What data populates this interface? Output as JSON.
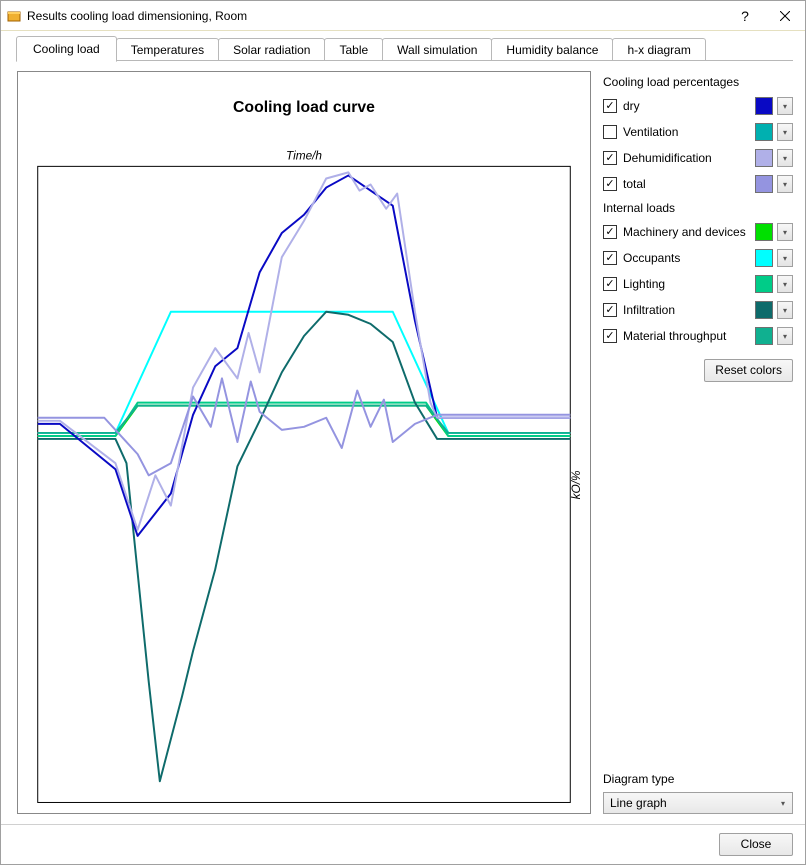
{
  "window": {
    "title": "Results cooling load dimensioning, Room",
    "icon_color": "#f0b030"
  },
  "tabs": [
    {
      "label": "Cooling load",
      "active": true
    },
    {
      "label": "Temperatures",
      "active": false
    },
    {
      "label": "Solar radiation",
      "active": false
    },
    {
      "label": "Table",
      "active": false
    },
    {
      "label": "Wall simulation",
      "active": false
    },
    {
      "label": "Humidity balance",
      "active": false
    },
    {
      "label": "h-x diagram",
      "active": false
    }
  ],
  "chart": {
    "title": "Cooling load curve",
    "title_fontsize": 16,
    "title_fontweight": "bold",
    "x_axis_label": "Time/h",
    "x_axis_fontstyle": "italic",
    "y_axis_label": "kO/%",
    "y_axis_fontstyle": "italic",
    "background": "#ffffff",
    "border_color": "#000000",
    "x_range": [
      0,
      24
    ],
    "y_range": [
      -120,
      90
    ],
    "inner_x_start": 2,
    "inner_x_end": 24,
    "series": {
      "dry": {
        "color": "#0909c4",
        "width": 2,
        "points": [
          [
            0,
            5
          ],
          [
            1,
            5
          ],
          [
            3.5,
            -10
          ],
          [
            4.5,
            -32
          ],
          [
            6,
            -18
          ],
          [
            7,
            8
          ],
          [
            8,
            24
          ],
          [
            9,
            30
          ],
          [
            10,
            55
          ],
          [
            11,
            68
          ],
          [
            12,
            74
          ],
          [
            13,
            83
          ],
          [
            14,
            87
          ],
          [
            15,
            82
          ],
          [
            16,
            77
          ],
          [
            17,
            39
          ],
          [
            18,
            7
          ],
          [
            19,
            7
          ],
          [
            24,
            7
          ]
        ]
      },
      "dehumidification": {
        "color": "#b0b0e8",
        "width": 2,
        "points": [
          [
            0,
            6
          ],
          [
            1,
            6
          ],
          [
            3.5,
            -8
          ],
          [
            4.5,
            -30
          ],
          [
            5.3,
            -12
          ],
          [
            6,
            -22
          ],
          [
            7,
            17
          ],
          [
            8,
            30
          ],
          [
            9,
            20
          ],
          [
            9.5,
            35
          ],
          [
            10,
            22
          ],
          [
            11,
            60
          ],
          [
            12,
            72
          ],
          [
            13,
            86
          ],
          [
            14,
            88
          ],
          [
            14.5,
            82
          ],
          [
            15,
            84
          ],
          [
            15.7,
            76
          ],
          [
            16.2,
            81
          ],
          [
            17,
            42
          ],
          [
            17.7,
            12
          ],
          [
            18,
            7
          ],
          [
            19,
            7
          ],
          [
            24,
            7
          ]
        ]
      },
      "total": {
        "color": "#9494e0",
        "width": 2,
        "points": [
          [
            0,
            7
          ],
          [
            1,
            7
          ],
          [
            3,
            7
          ],
          [
            4.5,
            -5
          ],
          [
            5,
            -12
          ],
          [
            6,
            -8
          ],
          [
            7,
            14
          ],
          [
            7.8,
            4
          ],
          [
            8.3,
            20
          ],
          [
            9,
            -1
          ],
          [
            9.6,
            19
          ],
          [
            10,
            9
          ],
          [
            11,
            3
          ],
          [
            12,
            4
          ],
          [
            13,
            7
          ],
          [
            13.7,
            -3
          ],
          [
            14.4,
            16
          ],
          [
            15,
            4
          ],
          [
            15.6,
            13
          ],
          [
            16,
            -1
          ],
          [
            17,
            5
          ],
          [
            18,
            8
          ],
          [
            24,
            8
          ]
        ]
      },
      "machinery": {
        "color": "#00e000",
        "width": 2,
        "points": [
          [
            0,
            1
          ],
          [
            3.5,
            1
          ],
          [
            4.5,
            11
          ],
          [
            17.5,
            11
          ],
          [
            18.5,
            1
          ],
          [
            24,
            1
          ]
        ]
      },
      "occupants": {
        "color": "#00ffff",
        "width": 2,
        "points": [
          [
            0,
            2
          ],
          [
            3.5,
            2
          ],
          [
            6,
            42
          ],
          [
            16,
            42
          ],
          [
            18.5,
            2
          ],
          [
            24,
            2
          ]
        ]
      },
      "lighting": {
        "color": "#00cc88",
        "width": 2,
        "points": [
          [
            0,
            1
          ],
          [
            3.5,
            1
          ],
          [
            4.5,
            12
          ],
          [
            17.5,
            12
          ],
          [
            18.5,
            1
          ],
          [
            24,
            1
          ]
        ]
      },
      "infiltration": {
        "color": "#0e6b6b",
        "width": 2,
        "points": [
          [
            0,
            0
          ],
          [
            3.5,
            0
          ],
          [
            4,
            -8
          ],
          [
            5,
            -80
          ],
          [
            5.5,
            -113
          ],
          [
            6.5,
            -85
          ],
          [
            7,
            -70
          ],
          [
            8,
            -43
          ],
          [
            9,
            -9
          ],
          [
            10,
            6
          ],
          [
            11,
            22
          ],
          [
            12,
            34
          ],
          [
            13,
            42
          ],
          [
            14,
            41
          ],
          [
            15,
            38
          ],
          [
            16,
            32
          ],
          [
            17,
            12
          ],
          [
            18,
            0
          ],
          [
            24,
            0
          ]
        ]
      },
      "material": {
        "color": "#10b090",
        "width": 2,
        "points": [
          [
            0,
            2
          ],
          [
            3.5,
            2
          ],
          [
            4.5,
            11
          ],
          [
            17.5,
            11
          ],
          [
            18.5,
            2
          ],
          [
            24,
            2
          ]
        ]
      }
    },
    "series_draw_order": [
      "occupants",
      "machinery",
      "lighting",
      "material",
      "infiltration",
      "dry",
      "dehumidification",
      "total"
    ]
  },
  "legend_groups": [
    {
      "title": "Cooling load percentages",
      "items": [
        {
          "key": "dry",
          "label": "dry",
          "checked": true,
          "color": "#0909c4"
        },
        {
          "key": "ventilation",
          "label": "Ventilation",
          "checked": false,
          "color": "#00b0b0"
        },
        {
          "key": "dehumidification",
          "label": "Dehumidification",
          "checked": true,
          "color": "#b0b0e8"
        },
        {
          "key": "total",
          "label": "total",
          "checked": true,
          "color": "#9494e0"
        }
      ]
    },
    {
      "title": "Internal loads",
      "items": [
        {
          "key": "machinery",
          "label": "Machinery and devices",
          "checked": true,
          "color": "#00e000"
        },
        {
          "key": "occupants",
          "label": "Occupants",
          "checked": true,
          "color": "#00ffff"
        },
        {
          "key": "lighting",
          "label": "Lighting",
          "checked": true,
          "color": "#00cc88"
        },
        {
          "key": "infiltration",
          "label": "Infiltration",
          "checked": true,
          "color": "#0e6b6b"
        },
        {
          "key": "material",
          "label": "Material throughput",
          "checked": true,
          "color": "#10b090"
        }
      ]
    }
  ],
  "reset_colors_label": "Reset colors",
  "diagram_type": {
    "label": "Diagram type",
    "selected": "Line graph"
  },
  "footer": {
    "close_label": "Close"
  }
}
